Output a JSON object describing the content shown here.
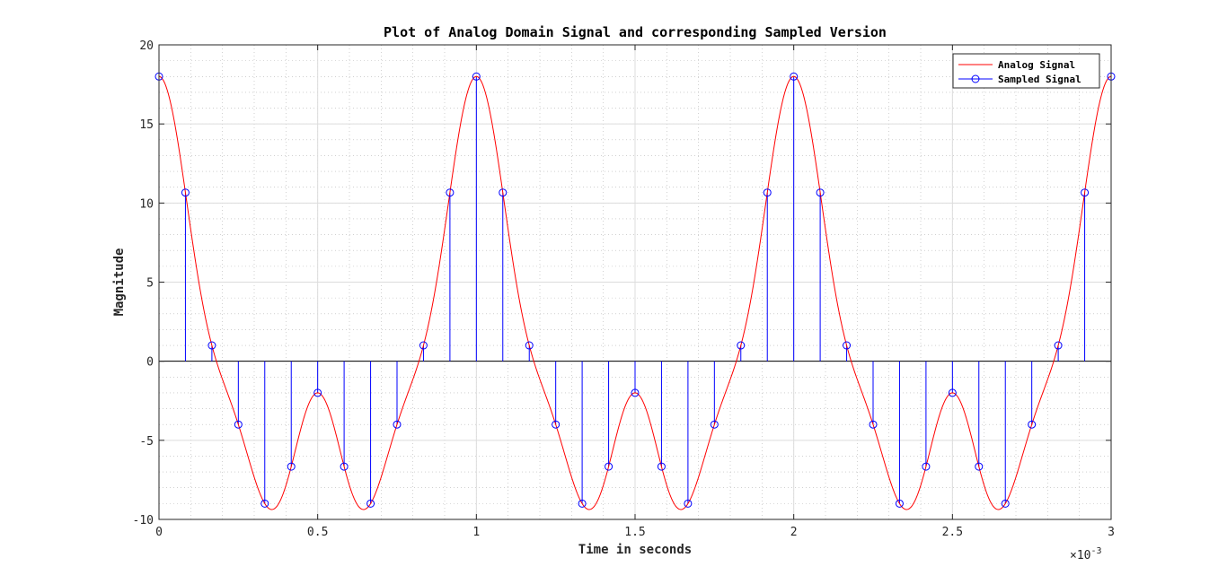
{
  "chart_data": {
    "type": "line",
    "title": "Plot of Analog Domain Signal and corresponding Sampled Version",
    "xlabel": "Time in seconds",
    "ylabel": "Magnitude",
    "x_exponent_label": "×10",
    "x_exponent_power": "-3",
    "xlim": [
      0,
      3
    ],
    "ylim": [
      -10,
      20
    ],
    "x_ticks": [
      "0",
      "0.5",
      "1",
      "1.5",
      "2",
      "2.5",
      "3"
    ],
    "y_ticks": [
      "-10",
      "-5",
      "0",
      "5",
      "10",
      "15",
      "20"
    ],
    "grid": true,
    "minor_grid": true,
    "legend_position": "top-right",
    "colors": {
      "analog": "#ff0000",
      "sampled": "#0000ff"
    },
    "series": [
      {
        "name": "Analog Signal",
        "style": "line",
        "function": "10cos(2*pi*1000t)+6cos(2*pi*2000t)+2cos(2*pi*4000t)"
      },
      {
        "name": "Sampled Signal",
        "style": "stem",
        "sample_spacing": 0.0833333,
        "x": [
          0,
          0.0833,
          0.1667,
          0.25,
          0.3333,
          0.4167,
          0.5,
          0.5833,
          0.6667,
          0.75,
          0.8333,
          0.9167,
          1,
          1.0833,
          1.1667,
          1.25,
          1.3333,
          1.4167,
          1.5,
          1.5833,
          1.6667,
          1.75,
          1.8333,
          1.9167,
          2,
          2.0833,
          2.1667,
          2.25,
          2.3333,
          2.4167,
          2.5,
          2.5833,
          2.6667,
          2.75,
          2.8333,
          2.9167,
          3
        ],
        "y": [
          18,
          10.66,
          1,
          -4,
          -9,
          -6.66,
          -2,
          -6.66,
          -9,
          -4,
          1,
          10.66,
          18,
          10.66,
          1,
          -4,
          -9,
          -6.66,
          -2,
          -6.66,
          -9,
          -4,
          1,
          10.66,
          18,
          10.66,
          1,
          -4,
          -9,
          -6.66,
          -2,
          -6.66,
          -9,
          -4,
          1,
          10.66,
          18
        ]
      }
    ]
  }
}
